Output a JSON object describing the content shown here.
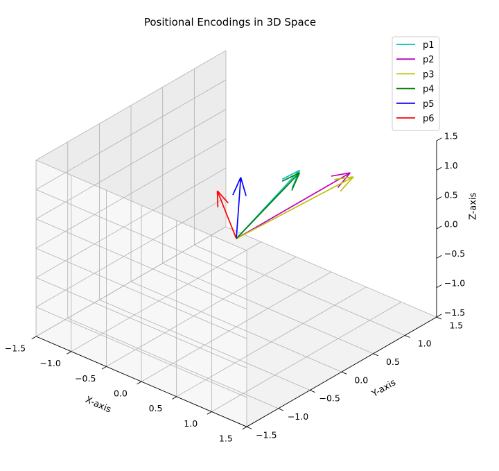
{
  "chart_data": {
    "type": "line",
    "title": "Positional Encodings in 3D Space",
    "xlabel": "X-axis",
    "ylabel": "Y-axis",
    "zlabel": "Z-axis",
    "xlim": [
      -1.5,
      1.5
    ],
    "ylim": [
      -1.5,
      1.5
    ],
    "zlim": [
      -1.5,
      1.5
    ],
    "ticks": [
      -1.5,
      -1.0,
      -0.5,
      0.0,
      0.5,
      1.0,
      1.5
    ],
    "tick_labels": [
      "−1.5",
      "−1.0",
      "−0.5",
      "0.0",
      "0.5",
      "1.0",
      "1.5"
    ],
    "grid": true,
    "legend_position": "top-right",
    "origin": [
      0,
      0,
      0
    ],
    "series": [
      {
        "name": "p1",
        "color": "#00bfbf",
        "vector": [
          0.0,
          1.0,
          0.54
        ]
      },
      {
        "name": "p2",
        "color": "#bf00bf",
        "vector": [
          0.0,
          1.8,
          0.0
        ]
      },
      {
        "name": "p3",
        "color": "#bfbf00",
        "vector": [
          0.0,
          1.85,
          -0.1
        ]
      },
      {
        "name": "p4",
        "color": "#008000",
        "vector": [
          0.0,
          1.0,
          0.5
        ]
      },
      {
        "name": "p5",
        "color": "#0000ff",
        "vector": [
          0.0,
          0.07,
          1.0
        ]
      },
      {
        "name": "p6",
        "color": "#ff0000",
        "vector": [
          0.0,
          -0.3,
          1.0
        ]
      }
    ]
  }
}
